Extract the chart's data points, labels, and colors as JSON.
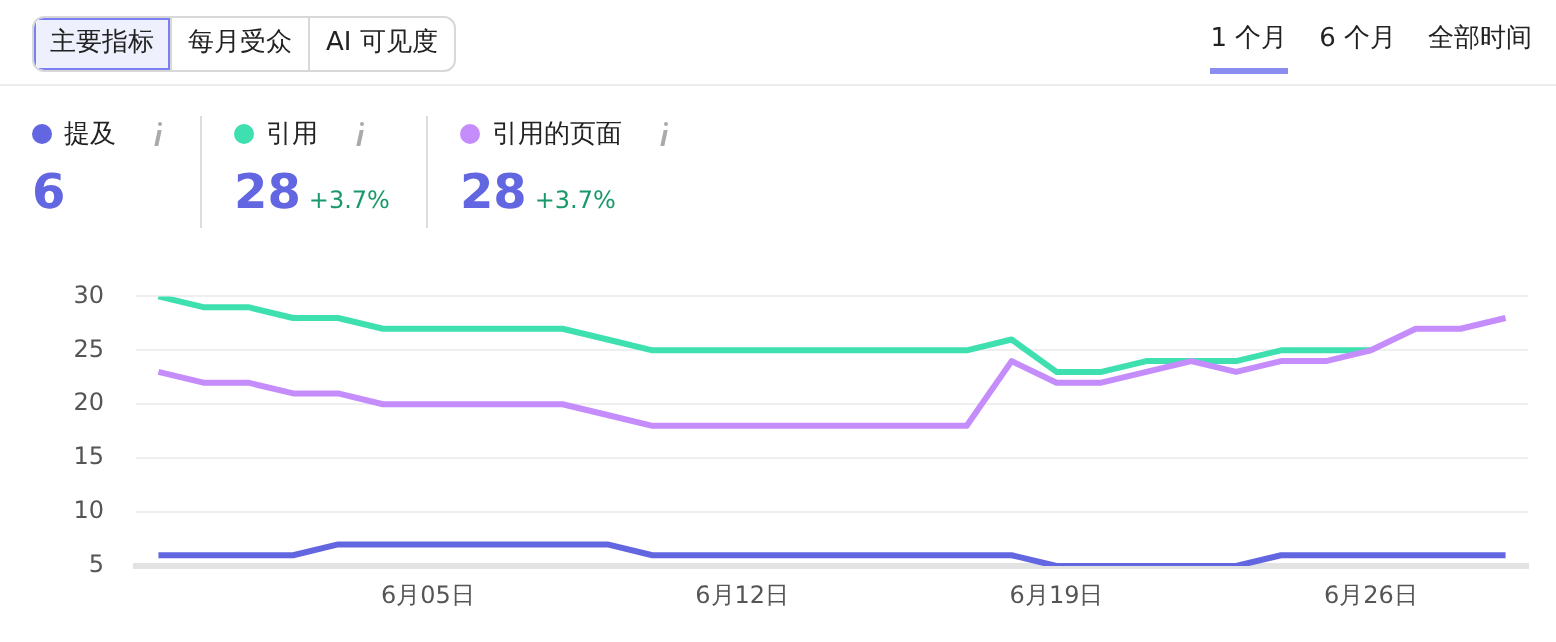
{
  "chart_data": {
    "type": "line",
    "categories": [
      null,
      null,
      null,
      null,
      null,
      null,
      "6月05日",
      null,
      null,
      null,
      null,
      null,
      null,
      "6月12日",
      null,
      null,
      null,
      null,
      null,
      null,
      "6月19日",
      null,
      null,
      null,
      null,
      null,
      null,
      "6月26日",
      null,
      null,
      null
    ],
    "series": [
      {
        "name": "提及",
        "color": "#6366e1",
        "values": [
          6,
          6,
          6,
          6,
          7,
          7,
          7,
          7,
          7,
          7,
          7,
          6,
          6,
          6,
          6,
          6,
          6,
          6,
          6,
          6,
          5,
          5,
          5,
          5,
          5,
          6,
          6,
          6,
          6,
          6,
          6
        ]
      },
      {
        "name": "引用",
        "color": "#3ee0b0",
        "values": [
          30,
          29,
          29,
          28,
          28,
          27,
          27,
          27,
          27,
          27,
          26,
          25,
          25,
          25,
          25,
          25,
          25,
          25,
          25,
          26,
          23,
          23,
          24,
          24,
          24,
          25,
          25,
          25,
          null,
          null,
          null
        ]
      },
      {
        "name": "引用的页面",
        "color": "#c58cfb",
        "values": [
          23,
          22,
          22,
          21,
          21,
          20,
          20,
          20,
          20,
          20,
          19,
          18,
          18,
          18,
          18,
          18,
          18,
          18,
          18,
          24,
          22,
          22,
          23,
          24,
          23,
          24,
          24,
          25,
          27,
          27,
          28
        ]
      }
    ],
    "ylim": [
      5,
      30
    ],
    "yticks": [
      5,
      10,
      15,
      20,
      25,
      30
    ],
    "grid": "y",
    "legend": "top left",
    "marker": "none",
    "line_style": "solid",
    "annotations": [
      "主要指标",
      "每月受众",
      "AI 可见度",
      "1 个月",
      "6 个月",
      "全部时间",
      "6",
      "28",
      "+3.7%",
      "28",
      "+3.7%"
    ]
  }
}
